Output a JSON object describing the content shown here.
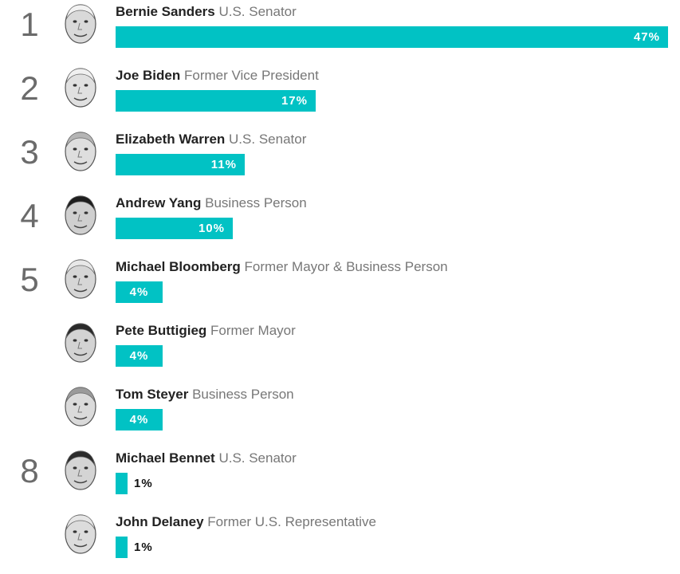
{
  "chart_data": {
    "type": "bar",
    "orientation": "horizontal",
    "xlim": [
      0,
      47
    ],
    "grid": false,
    "bar_color": "#01c2c4",
    "categories": [
      "Bernie Sanders",
      "Joe Biden",
      "Elizabeth Warren",
      "Andrew Yang",
      "Michael Bloomberg",
      "Pete Buttigieg",
      "Tom Steyer",
      "Michael Bennet",
      "John Delaney"
    ],
    "values": [
      47,
      17,
      11,
      10,
      4,
      4,
      4,
      1,
      1
    ],
    "rows": [
      {
        "rank": "1",
        "name": "Bernie Sanders",
        "title": "U.S. Senator",
        "value": 47,
        "label": "47%",
        "icon": "bernie-sanders-portrait-icon"
      },
      {
        "rank": "2",
        "name": "Joe Biden",
        "title": "Former Vice President",
        "value": 17,
        "label": "17%",
        "icon": "joe-biden-portrait-icon"
      },
      {
        "rank": "3",
        "name": "Elizabeth Warren",
        "title": "U.S. Senator",
        "value": 11,
        "label": "11%",
        "icon": "elizabeth-warren-portrait-icon"
      },
      {
        "rank": "4",
        "name": "Andrew Yang",
        "title": "Business Person",
        "value": 10,
        "label": "10%",
        "icon": "andrew-yang-portrait-icon"
      },
      {
        "rank": "5",
        "name": "Michael Bloomberg",
        "title": "Former Mayor & Business Person",
        "value": 4,
        "label": "4%",
        "icon": "michael-bloomberg-portrait-icon"
      },
      {
        "rank": "",
        "name": "Pete Buttigieg",
        "title": "Former Mayor",
        "value": 4,
        "label": "4%",
        "icon": "pete-buttigieg-portrait-icon"
      },
      {
        "rank": "",
        "name": "Tom Steyer",
        "title": "Business Person",
        "value": 4,
        "label": "4%",
        "icon": "tom-steyer-portrait-icon"
      },
      {
        "rank": "8",
        "name": "Michael Bennet",
        "title": "U.S. Senator",
        "value": 1,
        "label": "1%",
        "icon": "michael-bennet-portrait-icon"
      },
      {
        "rank": "",
        "name": "John Delaney",
        "title": "Former U.S. Representative",
        "value": 1,
        "label": "1%",
        "icon": "john-delaney-portrait-icon"
      }
    ]
  }
}
